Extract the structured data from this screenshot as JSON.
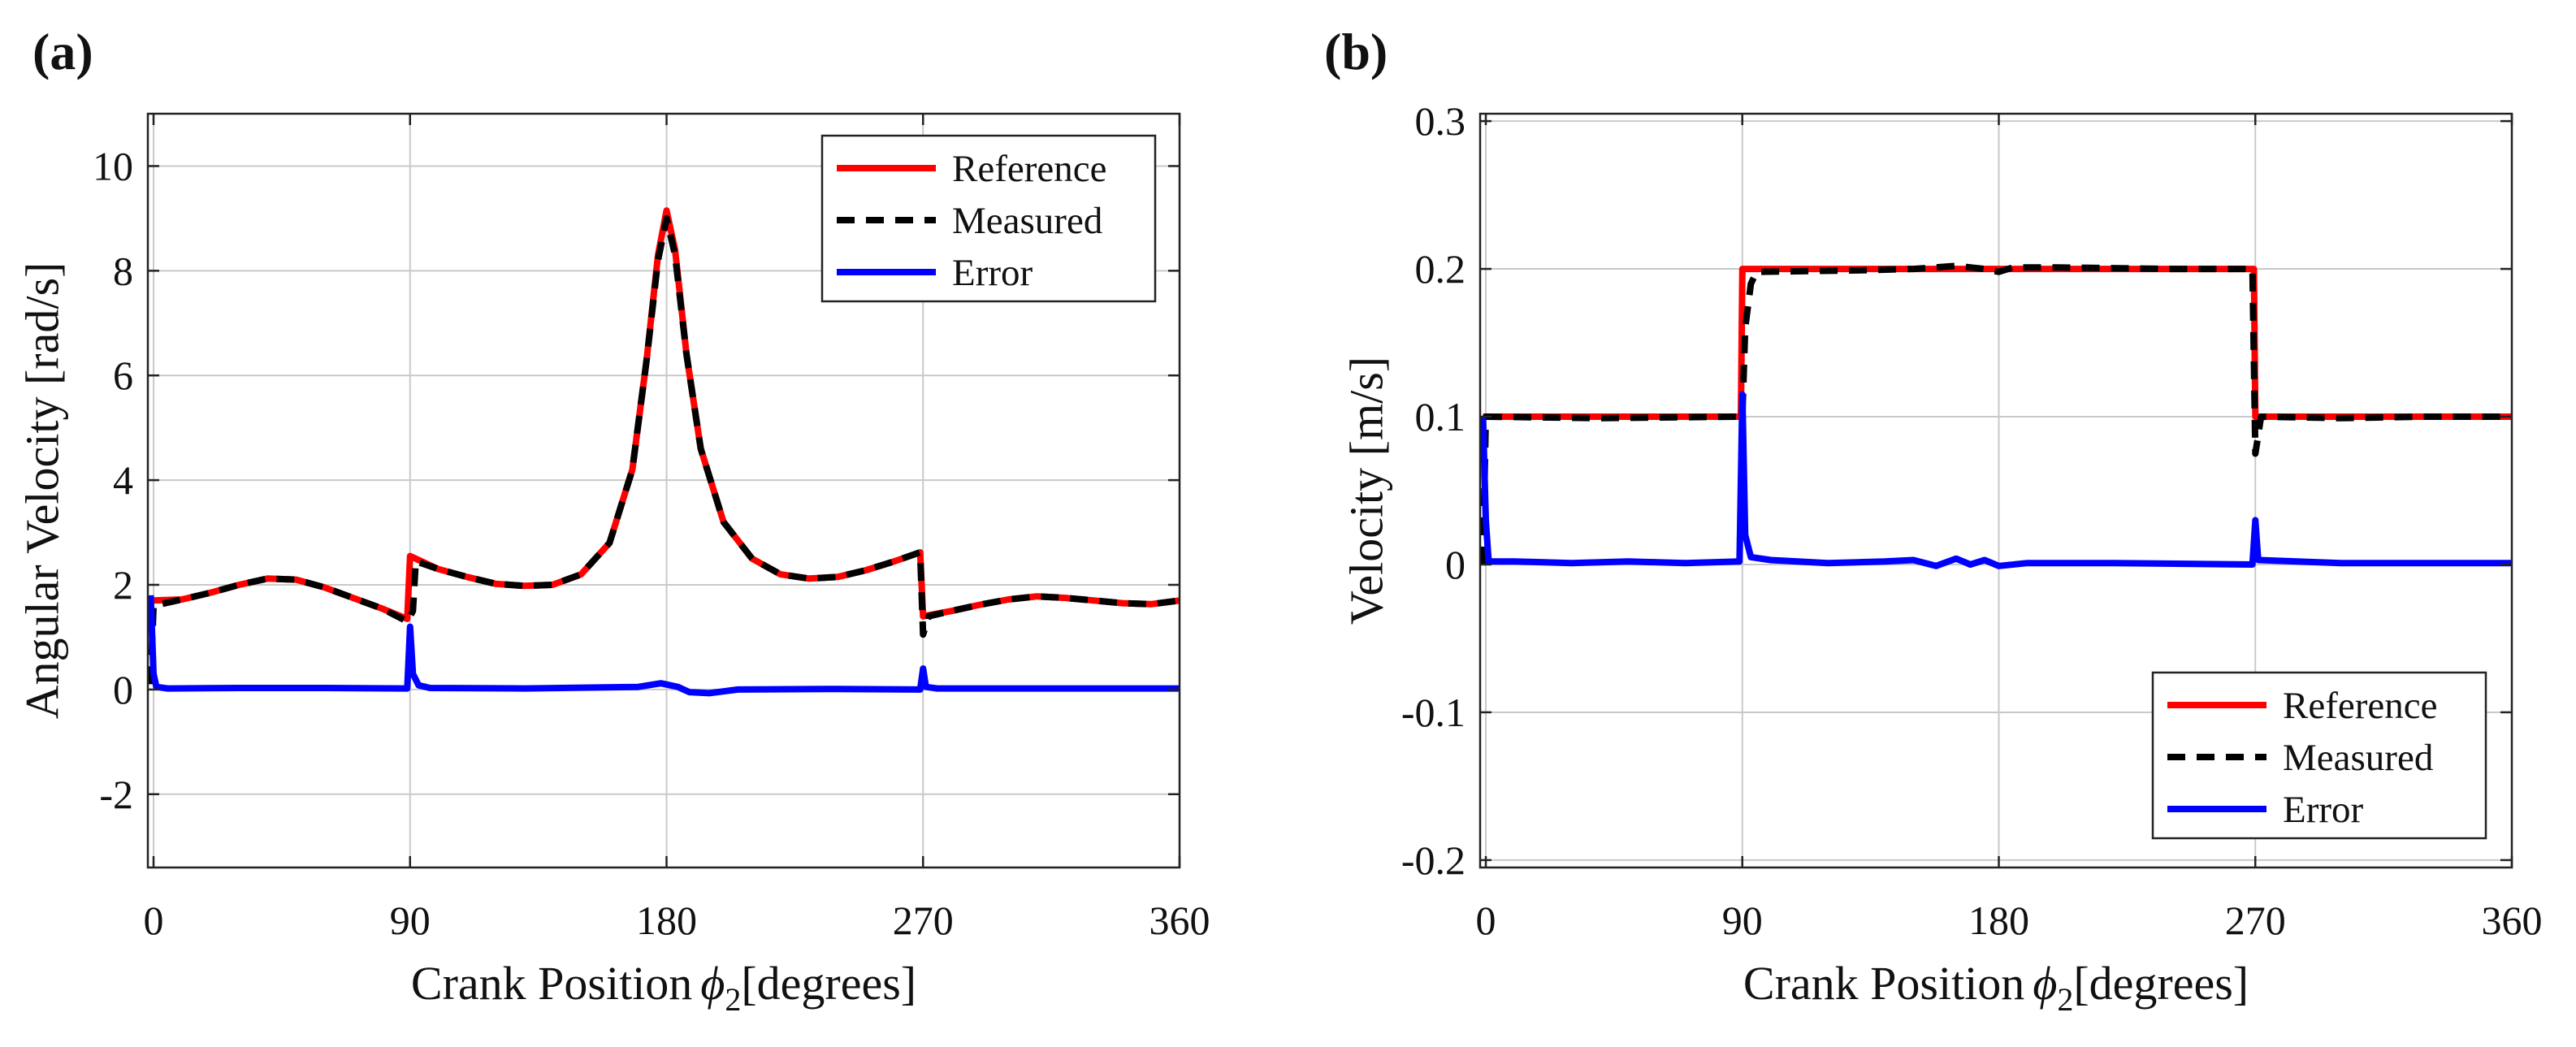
{
  "chart_data": [
    {
      "panel_label": "(a)",
      "type": "line",
      "xlabel": "Crank Position",
      "xlabel_symbol": "ϕ",
      "xlabel_subscript": "2",
      "xlabel_unit": "[degrees]",
      "ylabel": "Angular Velocity [rad/s]",
      "xlim": [
        -2,
        360
      ],
      "ylim": [
        -3.4,
        11
      ],
      "xticks": [
        0,
        90,
        180,
        270,
        360
      ],
      "yticks": [
        -2,
        0,
        2,
        4,
        6,
        8,
        10
      ],
      "ytick_labels": [
        "-2",
        "0",
        "2",
        "4",
        "6",
        "8",
        "10"
      ],
      "grid": true,
      "legend_position": "top-right",
      "series": [
        {
          "name": "Reference",
          "color": "#ff0000",
          "style": "solid",
          "points": [
            [
              0,
              1.7
            ],
            [
              10,
              1.72
            ],
            [
              20,
              1.85
            ],
            [
              30,
              2.0
            ],
            [
              40,
              2.12
            ],
            [
              50,
              2.1
            ],
            [
              60,
              1.95
            ],
            [
              70,
              1.75
            ],
            [
              80,
              1.55
            ],
            [
              89,
              1.35
            ],
            [
              90,
              2.55
            ],
            [
              100,
              2.3
            ],
            [
              110,
              2.15
            ],
            [
              120,
              2.02
            ],
            [
              130,
              1.98
            ],
            [
              140,
              2.0
            ],
            [
              150,
              2.2
            ],
            [
              160,
              2.8
            ],
            [
              168,
              4.2
            ],
            [
              173,
              6.3
            ],
            [
              177,
              8.3
            ],
            [
              180,
              9.15
            ],
            [
              183,
              8.4
            ],
            [
              187,
              6.4
            ],
            [
              192,
              4.6
            ],
            [
              200,
              3.2
            ],
            [
              210,
              2.5
            ],
            [
              220,
              2.2
            ],
            [
              230,
              2.12
            ],
            [
              240,
              2.15
            ],
            [
              250,
              2.28
            ],
            [
              260,
              2.45
            ],
            [
              269,
              2.62
            ],
            [
              270,
              1.4
            ],
            [
              280,
              1.5
            ],
            [
              290,
              1.62
            ],
            [
              300,
              1.72
            ],
            [
              310,
              1.78
            ],
            [
              320,
              1.75
            ],
            [
              330,
              1.7
            ],
            [
              340,
              1.65
            ],
            [
              350,
              1.63
            ],
            [
              360,
              1.7
            ]
          ]
        },
        {
          "name": "Measured",
          "color": "#000000",
          "style": "dashed",
          "points": [
            [
              -1,
              0.1
            ],
            [
              0,
              1.6
            ],
            [
              10,
              1.72
            ],
            [
              20,
              1.85
            ],
            [
              30,
              2.0
            ],
            [
              40,
              2.12
            ],
            [
              50,
              2.1
            ],
            [
              60,
              1.95
            ],
            [
              70,
              1.75
            ],
            [
              80,
              1.55
            ],
            [
              89,
              1.3
            ],
            [
              91,
              1.5
            ],
            [
              92,
              2.45
            ],
            [
              100,
              2.3
            ],
            [
              110,
              2.15
            ],
            [
              120,
              2.02
            ],
            [
              130,
              1.98
            ],
            [
              140,
              2.0
            ],
            [
              150,
              2.2
            ],
            [
              160,
              2.8
            ],
            [
              168,
              4.2
            ],
            [
              173,
              6.3
            ],
            [
              177,
              8.2
            ],
            [
              180,
              9.0
            ],
            [
              183,
              8.3
            ],
            [
              187,
              6.4
            ],
            [
              192,
              4.6
            ],
            [
              200,
              3.2
            ],
            [
              210,
              2.5
            ],
            [
              220,
              2.2
            ],
            [
              230,
              2.12
            ],
            [
              240,
              2.15
            ],
            [
              250,
              2.28
            ],
            [
              260,
              2.45
            ],
            [
              269,
              2.62
            ],
            [
              270,
              1.05
            ],
            [
              272,
              1.4
            ],
            [
              280,
              1.5
            ],
            [
              290,
              1.62
            ],
            [
              300,
              1.72
            ],
            [
              310,
              1.78
            ],
            [
              320,
              1.75
            ],
            [
              330,
              1.7
            ],
            [
              340,
              1.65
            ],
            [
              350,
              1.63
            ],
            [
              360,
              1.7
            ]
          ]
        },
        {
          "name": "Error",
          "color": "#0000ff",
          "style": "solid",
          "points": [
            [
              -1,
              1.8
            ],
            [
              0,
              0.3
            ],
            [
              1,
              0.05
            ],
            [
              5,
              0.02
            ],
            [
              30,
              0.03
            ],
            [
              60,
              0.03
            ],
            [
              89,
              0.02
            ],
            [
              90,
              1.2
            ],
            [
              91,
              0.3
            ],
            [
              93,
              0.08
            ],
            [
              97,
              0.03
            ],
            [
              130,
              0.02
            ],
            [
              170,
              0.05
            ],
            [
              178,
              0.12
            ],
            [
              184,
              0.05
            ],
            [
              188,
              -0.05
            ],
            [
              195,
              -0.07
            ],
            [
              205,
              0.0
            ],
            [
              240,
              0.01
            ],
            [
              269,
              0.0
            ],
            [
              270,
              0.4
            ],
            [
              271,
              0.05
            ],
            [
              275,
              0.02
            ],
            [
              320,
              0.02
            ],
            [
              360,
              0.02
            ]
          ]
        }
      ]
    },
    {
      "panel_label": "(b)",
      "type": "line",
      "xlabel": "Crank Position",
      "xlabel_symbol": "ϕ",
      "xlabel_subscript": "2",
      "xlabel_unit": "[degrees]",
      "ylabel": "Velocity [m/s]",
      "xlim": [
        -2,
        360
      ],
      "ylim": [
        -0.205,
        0.305
      ],
      "xticks": [
        0,
        90,
        180,
        270,
        360
      ],
      "yticks": [
        -0.2,
        -0.1,
        0,
        0.1,
        0.2,
        0.3
      ],
      "ytick_labels": [
        "-0.2",
        "-0.1",
        "0",
        "0.1",
        "0.2",
        "0.3"
      ],
      "grid": true,
      "legend_position": "bottom-right",
      "series": [
        {
          "name": "Reference",
          "color": "#ff0000",
          "style": "solid",
          "points": [
            [
              -1,
              0.1
            ],
            [
              89.5,
              0.1
            ],
            [
              90,
              0.2
            ],
            [
              269.5,
              0.2
            ],
            [
              270,
              0.1
            ],
            [
              360,
              0.1
            ]
          ]
        },
        {
          "name": "Measured",
          "color": "#000000",
          "style": "dashed",
          "points": [
            [
              -1,
              0.0
            ],
            [
              0,
              0.1
            ],
            [
              40,
              0.099
            ],
            [
              89,
              0.1
            ],
            [
              90,
              0.1
            ],
            [
              91,
              0.16
            ],
            [
              93,
              0.19
            ],
            [
              95,
              0.198
            ],
            [
              130,
              0.199
            ],
            [
              150,
              0.2
            ],
            [
              165,
              0.202
            ],
            [
              175,
              0.2
            ],
            [
              180,
              0.198
            ],
            [
              185,
              0.201
            ],
            [
              200,
              0.201
            ],
            [
              240,
              0.2
            ],
            [
              269,
              0.2
            ],
            [
              270,
              0.075
            ],
            [
              272,
              0.1
            ],
            [
              300,
              0.099
            ],
            [
              330,
              0.1
            ],
            [
              360,
              0.1
            ]
          ]
        },
        {
          "name": "Error",
          "color": "#0000ff",
          "style": "solid",
          "points": [
            [
              -1,
              0.1
            ],
            [
              0,
              0.03
            ],
            [
              1,
              0.002
            ],
            [
              10,
              0.002
            ],
            [
              30,
              0.001
            ],
            [
              50,
              0.002
            ],
            [
              70,
              0.001
            ],
            [
              89,
              0.002
            ],
            [
              90,
              0.115
            ],
            [
              91,
              0.02
            ],
            [
              93,
              0.005
            ],
            [
              100,
              0.003
            ],
            [
              120,
              0.001
            ],
            [
              140,
              0.002
            ],
            [
              150,
              0.003
            ],
            [
              158,
              -0.001
            ],
            [
              165,
              0.004
            ],
            [
              170,
              0.0
            ],
            [
              175,
              0.003
            ],
            [
              180,
              -0.001
            ],
            [
              190,
              0.001
            ],
            [
              220,
              0.001
            ],
            [
              269,
              0.0
            ],
            [
              270,
              0.03
            ],
            [
              271,
              0.003
            ],
            [
              300,
              0.001
            ],
            [
              330,
              0.001
            ],
            [
              360,
              0.001
            ]
          ]
        }
      ]
    }
  ]
}
